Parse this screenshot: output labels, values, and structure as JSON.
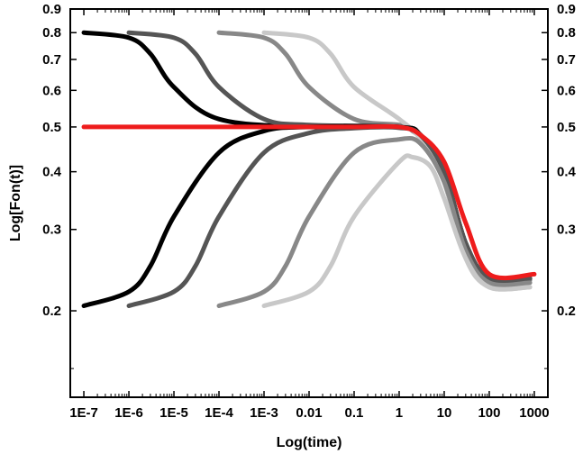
{
  "chart_data": {
    "type": "line",
    "xlabel": "Log(time)",
    "ylabel": "Log[Fon(t)]",
    "x_scale": "log",
    "y_scale": "log",
    "xlim": [
      5e-08,
      2000
    ],
    "ylim": [
      0.13,
      0.9
    ],
    "x_ticks": [
      {
        "value": 1e-07,
        "label": "1E-7"
      },
      {
        "value": 1e-06,
        "label": "1E-6"
      },
      {
        "value": 1e-05,
        "label": "1E-5"
      },
      {
        "value": 0.0001,
        "label": "1E-4"
      },
      {
        "value": 0.001,
        "label": "1E-3"
      },
      {
        "value": 0.01,
        "label": "0.01"
      },
      {
        "value": 0.1,
        "label": "0.1"
      },
      {
        "value": 1,
        "label": "1"
      },
      {
        "value": 10,
        "label": "10"
      },
      {
        "value": 100,
        "label": "100"
      },
      {
        "value": 1000,
        "label": "1000"
      }
    ],
    "y_ticks": [
      {
        "value": 0.2,
        "label": "0.2"
      },
      {
        "value": 0.3,
        "label": "0.3"
      },
      {
        "value": 0.4,
        "label": "0.4"
      },
      {
        "value": 0.5,
        "label": "0.5"
      },
      {
        "value": 0.6,
        "label": "0.6"
      },
      {
        "value": 0.7,
        "label": "0.7"
      },
      {
        "value": 0.8,
        "label": "0.8"
      },
      {
        "value": 0.9,
        "label": "0.9"
      }
    ],
    "right_y_ticks_mirrored": true,
    "grid": false,
    "series": [
      {
        "color": "#000000",
        "x": [
          1e-07,
          1e-06,
          3e-06,
          1e-05,
          0.0001,
          0.01,
          1,
          3,
          10,
          30,
          100,
          800
        ],
        "y": [
          0.8,
          0.78,
          0.72,
          0.61,
          0.52,
          0.5,
          0.5,
          0.48,
          0.4,
          0.28,
          0.235,
          0.235
        ]
      },
      {
        "color": "#555555",
        "x": [
          1e-06,
          1e-05,
          3e-05,
          0.0001,
          0.001,
          0.01,
          1,
          3,
          10,
          30,
          100,
          800
        ],
        "y": [
          0.8,
          0.78,
          0.72,
          0.61,
          0.52,
          0.505,
          0.5,
          0.48,
          0.4,
          0.28,
          0.235,
          0.235
        ]
      },
      {
        "color": "#888888",
        "x": [
          0.0001,
          0.001,
          0.003,
          0.01,
          0.1,
          1,
          2,
          5,
          10,
          30,
          100,
          800
        ],
        "y": [
          0.8,
          0.78,
          0.72,
          0.61,
          0.52,
          0.505,
          0.49,
          0.45,
          0.38,
          0.27,
          0.233,
          0.233
        ]
      },
      {
        "color": "#c8c8c8",
        "x": [
          0.001,
          0.01,
          0.03,
          0.1,
          1,
          3,
          10,
          30,
          100,
          800
        ],
        "y": [
          0.8,
          0.78,
          0.72,
          0.61,
          0.52,
          0.47,
          0.38,
          0.26,
          0.225,
          0.225
        ]
      },
      {
        "color": "#000000",
        "x": [
          1e-07,
          1e-06,
          3e-06,
          1e-05,
          0.0001,
          0.001,
          0.01,
          1,
          3,
          10,
          30,
          100,
          800
        ],
        "y": [
          0.205,
          0.22,
          0.25,
          0.32,
          0.44,
          0.49,
          0.5,
          0.5,
          0.48,
          0.4,
          0.28,
          0.235,
          0.235
        ]
      },
      {
        "color": "#555555",
        "x": [
          1e-06,
          1e-05,
          3e-05,
          0.0001,
          0.001,
          0.01,
          0.1,
          1,
          3,
          10,
          30,
          100,
          800
        ],
        "y": [
          0.205,
          0.22,
          0.25,
          0.32,
          0.44,
          0.485,
          0.497,
          0.498,
          0.48,
          0.4,
          0.28,
          0.235,
          0.235
        ]
      },
      {
        "color": "#888888",
        "x": [
          0.0001,
          0.001,
          0.003,
          0.01,
          0.1,
          1,
          3,
          10,
          30,
          100,
          800
        ],
        "y": [
          0.205,
          0.22,
          0.25,
          0.32,
          0.44,
          0.47,
          0.46,
          0.38,
          0.27,
          0.23,
          0.23
        ]
      },
      {
        "color": "#c8c8c8",
        "x": [
          0.001,
          0.01,
          0.03,
          0.1,
          1,
          2,
          5,
          10,
          30,
          100,
          800
        ],
        "y": [
          0.205,
          0.22,
          0.25,
          0.32,
          0.42,
          0.43,
          0.41,
          0.35,
          0.26,
          0.225,
          0.225
        ]
      },
      {
        "color": "#ee1c1c",
        "x": [
          1e-07,
          1e-05,
          0.001,
          0.1,
          1,
          3,
          10,
          30,
          100,
          1000
        ],
        "y": [
          0.5,
          0.5,
          0.5,
          0.5,
          0.5,
          0.48,
          0.42,
          0.31,
          0.24,
          0.24
        ]
      }
    ]
  }
}
